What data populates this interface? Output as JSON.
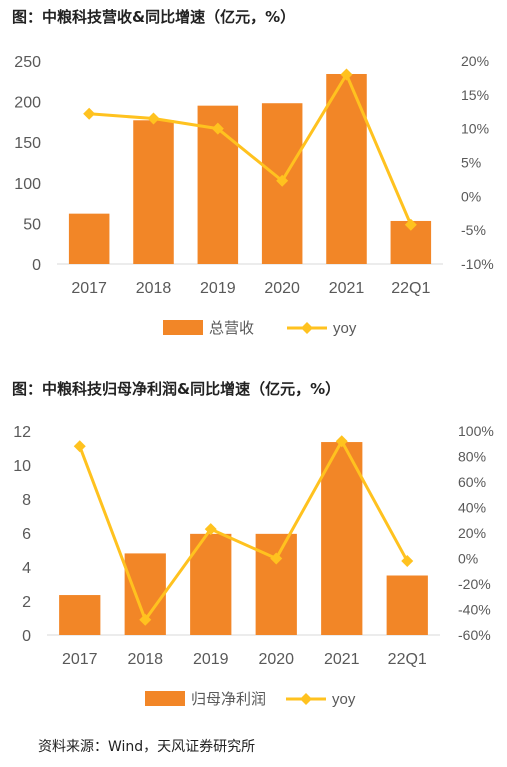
{
  "charts_title": [
    "图：中粮科技营收&同比增速（亿元，%）",
    "图：中粮科技归母净利润&同比增速（亿元，%）"
  ],
  "source": "资料来源：Wind，天风证券研究所",
  "colors": {
    "bar": "#F28627",
    "line": "#FFC21F",
    "axis": "#D9D9D9",
    "text": "#595959"
  },
  "chart_data": [
    {
      "type": "bar",
      "title": "图：中粮科技营收&同比增速（亿元，%）",
      "categories": [
        "2017",
        "2018",
        "2019",
        "2020",
        "2021",
        "22Q1"
      ],
      "series": [
        {
          "name": "总营收",
          "type": "bar",
          "axis": "left",
          "values": [
            62,
            177,
            195,
            198,
            234,
            53
          ]
        },
        {
          "name": "yoy",
          "type": "line",
          "axis": "right",
          "values": [
            12.2,
            11.5,
            10.0,
            2.3,
            18.0,
            -4.2
          ]
        }
      ],
      "ylim": [
        0,
        250
      ],
      "yticks": [
        "0",
        "50",
        "100",
        "150",
        "200",
        "250"
      ],
      "y2lim": [
        -10,
        20
      ],
      "y2ticks": [
        "-10%",
        "-5%",
        "0%",
        "5%",
        "10%",
        "15%",
        "20%"
      ],
      "legend": "bottom",
      "grid": false
    },
    {
      "type": "bar",
      "title": "图：中粮科技归母净利润&同比增速（亿元，%）",
      "categories": [
        "2017",
        "2018",
        "2019",
        "2020",
        "2021",
        "22Q1"
      ],
      "series": [
        {
          "name": "归母净利润",
          "type": "bar",
          "axis": "left",
          "values": [
            2.35,
            4.8,
            5.95,
            5.95,
            11.35,
            3.5
          ]
        },
        {
          "name": "yoy",
          "type": "line",
          "axis": "right",
          "values": [
            88,
            -48,
            23,
            0,
            92,
            -2
          ]
        }
      ],
      "ylim": [
        0,
        12
      ],
      "yticks": [
        "0",
        "2",
        "4",
        "6",
        "8",
        "10",
        "12"
      ],
      "y2lim": [
        -60,
        100
      ],
      "y2ticks": [
        "-60%",
        "-40%",
        "-20%",
        "0%",
        "20%",
        "40%",
        "60%",
        "80%",
        "100%"
      ],
      "legend": "bottom",
      "grid": false
    }
  ]
}
